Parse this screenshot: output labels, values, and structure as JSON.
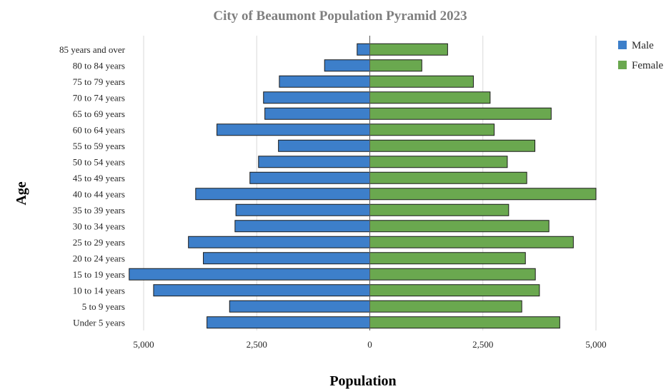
{
  "chart_data": {
    "type": "bar",
    "orientation": "horizontal",
    "title": "City of Beaumont Population Pyramid 2023",
    "xlabel": "Population",
    "ylabel": "Age",
    "categories": [
      "Under 5 years",
      "5 to 9 years",
      "10 to 14 years",
      "15 to 19 years",
      "20 to 24 years",
      "25 to 29 years",
      "30 to 34 years",
      "35 to 39 years",
      "40 to 44 years",
      "45 to 49 years",
      "50 to 54 years",
      "55 to 59 years",
      "60 to 64 years",
      "65 to 69 years",
      "70 to 74 years",
      "75 to 79 years",
      "80 to 84 years",
      "85 years and over"
    ],
    "series": [
      {
        "name": "Male",
        "color": "#3d7fca",
        "values": [
          -3600,
          -3100,
          -4780,
          -5320,
          -3680,
          -4010,
          -2980,
          -2960,
          -3850,
          -2650,
          -2460,
          -2020,
          -3380,
          -2320,
          -2350,
          -2000,
          -1000,
          -280
        ]
      },
      {
        "name": "Female",
        "color": "#6aa84f",
        "values": [
          4200,
          3360,
          3750,
          3660,
          3440,
          4500,
          3960,
          3070,
          5000,
          3470,
          3040,
          3650,
          2750,
          4010,
          2660,
          2290,
          1150,
          1720
        ]
      }
    ],
    "xlim": [
      -5400,
      5400
    ],
    "xticks": [
      -5000,
      -2500,
      0,
      2500,
      5000
    ],
    "xtick_labels": [
      "5,000",
      "2,500",
      "0",
      "2,500",
      "5,000"
    ],
    "grid": "vertical",
    "legend": "top-right"
  }
}
